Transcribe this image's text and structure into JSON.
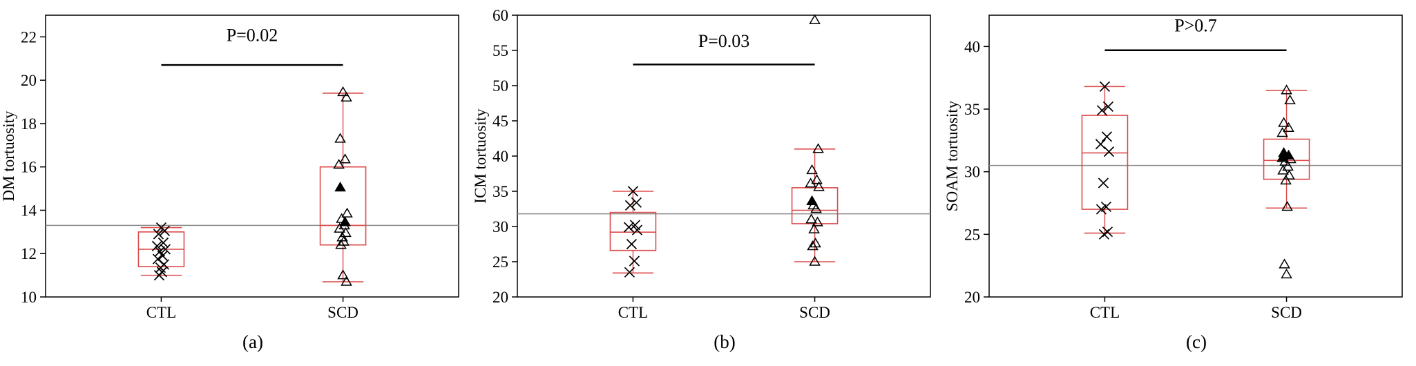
{
  "figure": {
    "background": "#ffffff",
    "frame_color": "#000000",
    "box_color": "#dd4b4b",
    "marker_color": "#000000",
    "ref_line_color": "#8a8a8a",
    "sig_line_color": "#000000",
    "text_color": "#000000"
  },
  "chart_data": [
    {
      "type": "boxplot-scatter",
      "caption": "(a)",
      "ylabel": "DM tortuosity",
      "categories": [
        "CTL",
        "SCD"
      ],
      "ylim": [
        10,
        23
      ],
      "yticks": [
        10,
        12,
        14,
        16,
        18,
        20,
        22
      ],
      "reference_line": 13.3,
      "significance": {
        "label": "P=0.02",
        "line_y": 20.7,
        "text_y": 21.8
      },
      "groups": [
        {
          "label": "CTL",
          "marker": "x",
          "box": {
            "q1": 11.4,
            "median": 12.2,
            "q3": 13.0,
            "whisker_low": 11.0,
            "whisker_high": 13.2
          },
          "points": [
            13.2,
            13.05,
            12.9,
            12.5,
            12.35,
            12.2,
            12.1,
            11.9,
            11.75,
            11.5,
            11.35,
            11.15,
            11.0
          ],
          "filled_points": []
        },
        {
          "label": "SCD",
          "marker": "triangle",
          "box": {
            "q1": 12.4,
            "median": 13.3,
            "q3": 16.0,
            "whisker_low": 10.7,
            "whisker_high": 19.4
          },
          "points": [
            19.45,
            19.2,
            17.3,
            16.35,
            16.1,
            13.85,
            13.6,
            13.3,
            13.15,
            12.95,
            12.75,
            12.55,
            12.4,
            11.0,
            10.7
          ],
          "filled_points": [
            15.05,
            13.45
          ]
        }
      ]
    },
    {
      "type": "boxplot-scatter",
      "caption": "(b)",
      "ylabel": "ICM tortuosity",
      "categories": [
        "CTL",
        "SCD"
      ],
      "ylim": [
        20,
        60
      ],
      "yticks": [
        20,
        25,
        30,
        35,
        40,
        45,
        50,
        55,
        60
      ],
      "reference_line": 31.8,
      "significance": {
        "label": "P=0.03",
        "line_y": 53.0,
        "text_y": 55.5
      },
      "groups": [
        {
          "label": "CTL",
          "marker": "x",
          "box": {
            "q1": 26.6,
            "median": 29.2,
            "q3": 32.0,
            "whisker_low": 23.4,
            "whisker_high": 35.0
          },
          "points": [
            35.0,
            33.4,
            33.0,
            30.2,
            29.9,
            29.5,
            27.5,
            25.1,
            23.5
          ],
          "filled_points": []
        },
        {
          "label": "SCD",
          "marker": "triangle",
          "box": {
            "q1": 30.4,
            "median": 32.3,
            "q3": 35.5,
            "whisker_low": 25.0,
            "whisker_high": 41.0
          },
          "points": [
            59.3,
            41.0,
            38.0,
            36.6,
            36.1,
            35.6,
            33.0,
            32.5,
            31.0,
            30.6,
            29.6,
            27.6,
            27.2,
            25.0
          ],
          "filled_points": [
            33.6
          ]
        }
      ]
    },
    {
      "type": "boxplot-scatter",
      "caption": "(c)",
      "ylabel": "SOAM tortuosity",
      "categories": [
        "CTL",
        "SCD"
      ],
      "ylim": [
        20,
        42.5
      ],
      "yticks": [
        20,
        25,
        30,
        35,
        40
      ],
      "reference_line": 30.5,
      "significance": {
        "label": "P>0.7",
        "line_y": 39.7,
        "text_y": 41.2
      },
      "groups": [
        {
          "label": "CTL",
          "marker": "x",
          "box": {
            "q1": 27.0,
            "median": 31.5,
            "q3": 34.5,
            "whisker_low": 25.1,
            "whisker_high": 36.8
          },
          "points": [
            36.8,
            35.2,
            34.9,
            32.8,
            32.2,
            31.6,
            29.1,
            27.2,
            27.0,
            25.2,
            25.0
          ],
          "filled_points": []
        },
        {
          "label": "SCD",
          "marker": "triangle",
          "box": {
            "q1": 29.4,
            "median": 30.9,
            "q3": 32.6,
            "whisker_low": 27.1,
            "whisker_high": 36.5
          },
          "points": [
            36.5,
            35.7,
            33.9,
            33.5,
            33.1,
            31.0,
            30.8,
            30.4,
            30.1,
            29.7,
            29.3,
            27.2,
            22.6,
            21.8
          ],
          "filled_points": [
            31.5,
            31.3,
            31.1
          ]
        }
      ]
    }
  ]
}
